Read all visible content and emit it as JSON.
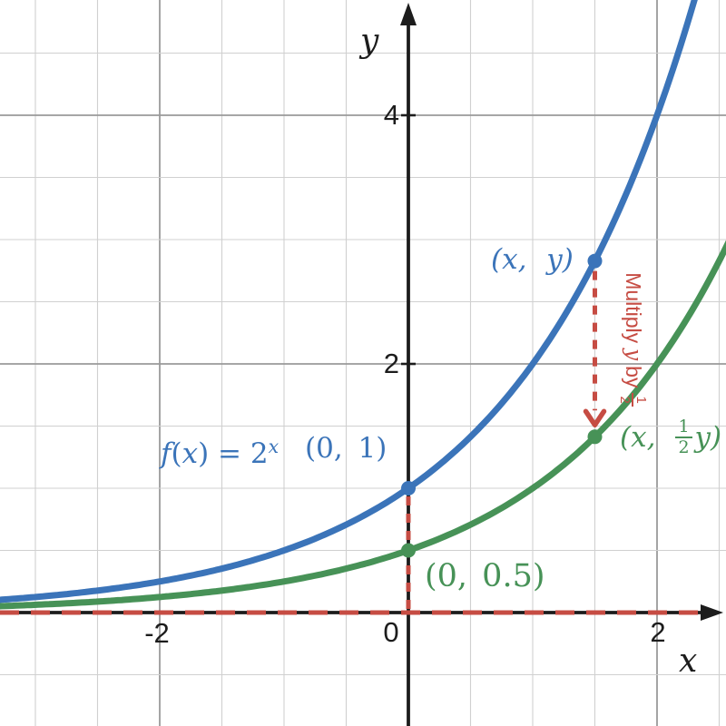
{
  "figure": {
    "background": "#ffffff",
    "axis_color": "#1c1c1c",
    "grid_minor_color": "#d0d0d0",
    "grid_major_color": "#9a9a9a",
    "accent_blue": "#3b74b9",
    "accent_green": "#479257",
    "accent_red": "#c64c43"
  },
  "chart_data": {
    "type": "line",
    "xlabel": "x",
    "ylabel": "y",
    "x_ticks": [
      {
        "v": -2,
        "label": "-2"
      },
      {
        "v": 0,
        "label": "0"
      },
      {
        "v": 2,
        "label": "2"
      }
    ],
    "y_ticks": [
      {
        "v": 2,
        "label": "2"
      },
      {
        "v": 4,
        "label": "4"
      }
    ],
    "x_visible_range": [
      -3.28,
      2.55
    ],
    "y_visible_range": [
      -0.91,
      4.93
    ],
    "grid": {
      "minor_step": 0.5,
      "major_step": 2,
      "grid_on": true
    },
    "series": [
      {
        "name": "f(x) = 2^x",
        "expression": "2^x",
        "coefficient": 1,
        "base": 2,
        "color": "#3b74b9"
      },
      {
        "name": "(1/2)·2^x",
        "expression": "(1/2)·2^x",
        "coefficient": 0.5,
        "base": 2,
        "color": "#479257"
      }
    ],
    "points": [
      {
        "x": 0,
        "y": 1,
        "series": 0,
        "label": "(0, 1)",
        "color": "#3b74b9"
      },
      {
        "x": 0,
        "y": 0.5,
        "series": 1,
        "label": "(0, 0.5)",
        "color": "#479257"
      },
      {
        "x": 1.5,
        "y": 2.828,
        "series": 0,
        "label": "(x, y)",
        "color": "#3b74b9"
      },
      {
        "x": 1.5,
        "y": 1.414,
        "series": 1,
        "label": "(x, 1/2 y)",
        "color": "#479257"
      }
    ],
    "annotations": [
      {
        "type": "asymptote",
        "y": 0,
        "style": "dashed",
        "color": "#c64c43"
      },
      {
        "type": "segment",
        "x": 0,
        "from_y": 1,
        "to_y": 0,
        "style": "dashed",
        "color": "#c64c43"
      },
      {
        "type": "arrow",
        "x": 1.5,
        "from_y": 2.828,
        "to_y": 1.414,
        "style": "dashed",
        "color": "#c64c43",
        "label": "Multiply y by 1/2"
      }
    ]
  },
  "labels": {
    "func": {
      "f": "f",
      "open": "(",
      "x": "x",
      "eq": ") = 2",
      "sup": "x"
    },
    "pt_01": "(0, 1)",
    "pt_xy": "(x, y)",
    "pt_005": "(0, 0.5)",
    "pt_xhalf": {
      "open": "(x,",
      "num": "1",
      "den": "2",
      "close": "y)"
    },
    "red": {
      "before": "Multiply",
      "var": "y",
      "mid": "by",
      "num": "1",
      "den": "2"
    }
  }
}
